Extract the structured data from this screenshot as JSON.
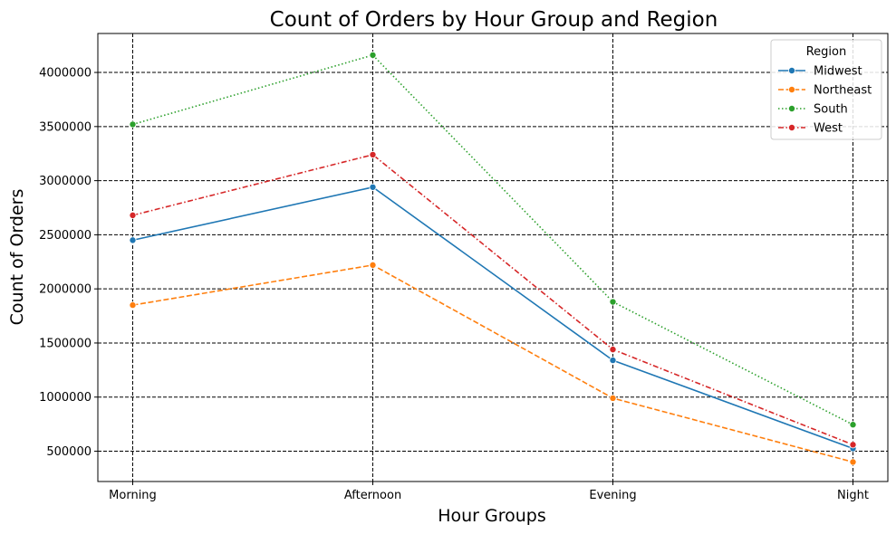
{
  "chart_data": {
    "type": "line",
    "title": "Count of Orders by Hour Group and Region",
    "xlabel": "Hour Groups",
    "ylabel": "Count of Orders",
    "categories": [
      "Morning",
      "Afternoon",
      "Evening",
      "Night"
    ],
    "ylim": [
      220000,
      4360000
    ],
    "yticks": [
      500000,
      1000000,
      1500000,
      2000000,
      2500000,
      3000000,
      3500000,
      4000000
    ],
    "grid": true,
    "legend": {
      "title": "Region",
      "placement": "top-right"
    },
    "series": [
      {
        "name": "Midwest",
        "color": "#1f77b4",
        "dash": "solid",
        "values": [
          2450000,
          2940000,
          1340000,
          525000
        ]
      },
      {
        "name": "Northeast",
        "color": "#ff7f0e",
        "dash": "dashed",
        "values": [
          1850000,
          2220000,
          990000,
          400000
        ]
      },
      {
        "name": "South",
        "color": "#2ca02c",
        "dash": "dotted",
        "values": [
          3520000,
          4160000,
          1880000,
          745000
        ]
      },
      {
        "name": "West",
        "color": "#d62728",
        "dash": "dashdot",
        "values": [
          2680000,
          3240000,
          1440000,
          560000
        ]
      }
    ]
  }
}
